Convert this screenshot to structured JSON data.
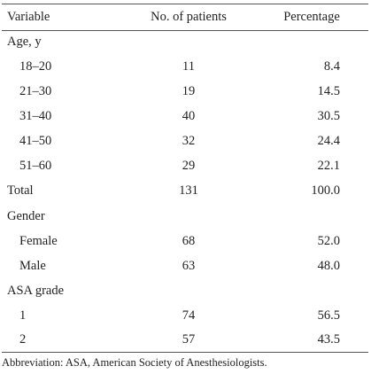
{
  "table": {
    "headers": {
      "variable": "Variable",
      "patients": "No. of patients",
      "percentage": "Percentage"
    },
    "rows": [
      {
        "variable": "Age, y",
        "patients": "",
        "percentage": "",
        "indent": false
      },
      {
        "variable": "18–20",
        "patients": "11",
        "percentage": "8.4",
        "indent": true
      },
      {
        "variable": "21–30",
        "patients": "19",
        "percentage": "14.5",
        "indent": true
      },
      {
        "variable": "31–40",
        "patients": "40",
        "percentage": "30.5",
        "indent": true
      },
      {
        "variable": "41–50",
        "patients": "32",
        "percentage": "24.4",
        "indent": true
      },
      {
        "variable": "51–60",
        "patients": "29",
        "percentage": "22.1",
        "indent": true
      },
      {
        "variable": "Total",
        "patients": "131",
        "percentage": "100.0",
        "indent": false
      },
      {
        "variable": "Gender",
        "patients": "",
        "percentage": "",
        "indent": false
      },
      {
        "variable": "Female",
        "patients": "68",
        "percentage": "52.0",
        "indent": true
      },
      {
        "variable": "Male",
        "patients": "63",
        "percentage": "48.0",
        "indent": true
      },
      {
        "variable": "ASA grade",
        "patients": "",
        "percentage": "",
        "indent": false
      },
      {
        "variable": "1",
        "patients": "74",
        "percentage": "56.5",
        "indent": true
      },
      {
        "variable": "2",
        "patients": "57",
        "percentage": "43.5",
        "indent": true
      }
    ]
  },
  "footnote": "Abbreviation: ASA, American Society of Anesthesiologists."
}
